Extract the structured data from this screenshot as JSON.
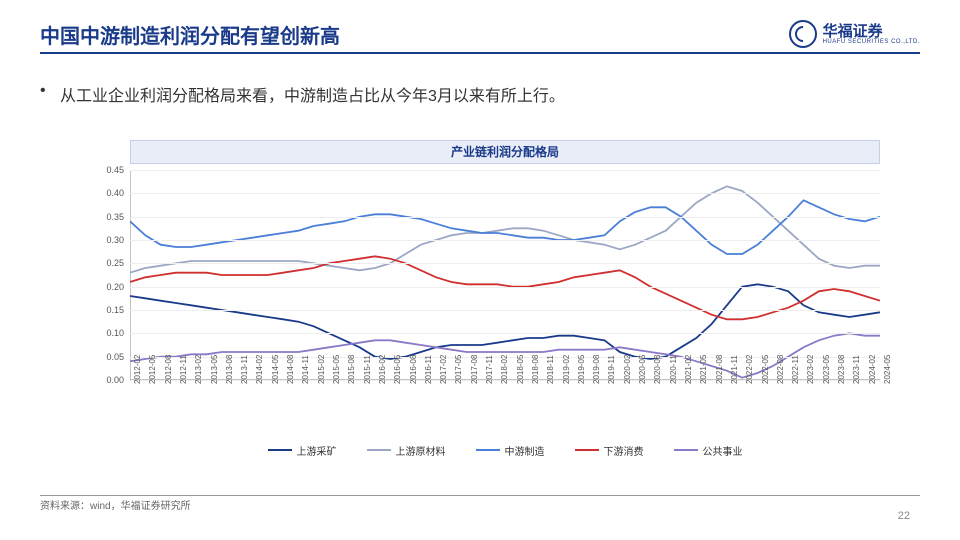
{
  "header": {
    "title": "中国中游制造利润分配有望创新高",
    "logo_cn": "华福证券",
    "logo_en": "HUAFU SECURITIES CO.,LTD."
  },
  "bullet_text": "从工业企业利润分配格局来看，中游制造占比从今年3月以来有所上行。",
  "chart": {
    "title": "产业链利润分配格局",
    "type": "line",
    "ylim": [
      0.0,
      0.45
    ],
    "ytick_step": 0.05,
    "yticks": [
      "0.00",
      "0.05",
      "0.10",
      "0.15",
      "0.20",
      "0.25",
      "0.30",
      "0.35",
      "0.40",
      "0.45"
    ],
    "x_labels": [
      "2012-02",
      "2012-05",
      "2012-08",
      "2012-11",
      "2013-02",
      "2013-05",
      "2013-08",
      "2013-11",
      "2014-02",
      "2014-05",
      "2014-08",
      "2014-11",
      "2015-02",
      "2015-05",
      "2015-08",
      "2015-11",
      "2016-02",
      "2016-05",
      "2016-08",
      "2016-11",
      "2017-02",
      "2017-05",
      "2017-08",
      "2017-11",
      "2018-02",
      "2018-05",
      "2018-08",
      "2018-11",
      "2019-02",
      "2019-05",
      "2019-08",
      "2019-11",
      "2020-02",
      "2020-05",
      "2020-08",
      "2020-11",
      "2021-02",
      "2021-05",
      "2021-08",
      "2021-11",
      "2022-02",
      "2022-05",
      "2022-08",
      "2022-11",
      "2023-02",
      "2023-05",
      "2023-08",
      "2023-11",
      "2024-02",
      "2024-05"
    ],
    "series": [
      {
        "name": "上游采矿",
        "color": "#1a3a8a",
        "width": 1.8,
        "values": [
          0.18,
          0.175,
          0.17,
          0.165,
          0.16,
          0.155,
          0.15,
          0.145,
          0.14,
          0.135,
          0.13,
          0.125,
          0.115,
          0.1,
          0.085,
          0.07,
          0.05,
          0.045,
          0.05,
          0.06,
          0.07,
          0.075,
          0.075,
          0.075,
          0.08,
          0.085,
          0.09,
          0.09,
          0.095,
          0.095,
          0.09,
          0.085,
          0.06,
          0.05,
          0.045,
          0.05,
          0.07,
          0.09,
          0.12,
          0.16,
          0.2,
          0.205,
          0.2,
          0.19,
          0.16,
          0.145,
          0.14,
          0.135,
          0.14,
          0.145
        ]
      },
      {
        "name": "上游原材料",
        "color": "#9ba7c4",
        "width": 1.8,
        "values": [
          0.23,
          0.24,
          0.245,
          0.25,
          0.255,
          0.255,
          0.255,
          0.255,
          0.255,
          0.255,
          0.255,
          0.255,
          0.25,
          0.245,
          0.24,
          0.235,
          0.24,
          0.25,
          0.27,
          0.29,
          0.3,
          0.31,
          0.315,
          0.315,
          0.32,
          0.325,
          0.325,
          0.32,
          0.31,
          0.3,
          0.295,
          0.29,
          0.28,
          0.29,
          0.305,
          0.32,
          0.35,
          0.38,
          0.4,
          0.415,
          0.405,
          0.38,
          0.35,
          0.32,
          0.29,
          0.26,
          0.245,
          0.24,
          0.245,
          0.245
        ]
      },
      {
        "name": "中游制造",
        "color": "#4a7fd8",
        "width": 1.8,
        "values": [
          0.34,
          0.31,
          0.29,
          0.285,
          0.285,
          0.29,
          0.295,
          0.3,
          0.305,
          0.31,
          0.315,
          0.32,
          0.33,
          0.335,
          0.34,
          0.35,
          0.355,
          0.355,
          0.35,
          0.345,
          0.335,
          0.325,
          0.32,
          0.315,
          0.315,
          0.31,
          0.305,
          0.305,
          0.3,
          0.3,
          0.305,
          0.31,
          0.34,
          0.36,
          0.37,
          0.37,
          0.35,
          0.32,
          0.29,
          0.27,
          0.27,
          0.29,
          0.32,
          0.35,
          0.385,
          0.37,
          0.355,
          0.345,
          0.34,
          0.35
        ]
      },
      {
        "name": "下游消费",
        "color": "#d12f2f",
        "width": 1.8,
        "values": [
          0.21,
          0.22,
          0.225,
          0.23,
          0.23,
          0.23,
          0.225,
          0.225,
          0.225,
          0.225,
          0.23,
          0.235,
          0.24,
          0.25,
          0.255,
          0.26,
          0.265,
          0.26,
          0.25,
          0.235,
          0.22,
          0.21,
          0.205,
          0.205,
          0.205,
          0.2,
          0.2,
          0.205,
          0.21,
          0.22,
          0.225,
          0.23,
          0.235,
          0.22,
          0.2,
          0.185,
          0.17,
          0.155,
          0.14,
          0.13,
          0.13,
          0.135,
          0.145,
          0.155,
          0.17,
          0.19,
          0.195,
          0.19,
          0.18,
          0.17
        ]
      },
      {
        "name": "公共事业",
        "color": "#8b78c7",
        "width": 1.8,
        "values": [
          0.04,
          0.045,
          0.05,
          0.05,
          0.055,
          0.055,
          0.06,
          0.06,
          0.06,
          0.06,
          0.06,
          0.06,
          0.065,
          0.07,
          0.075,
          0.08,
          0.085,
          0.085,
          0.08,
          0.075,
          0.07,
          0.065,
          0.06,
          0.06,
          0.06,
          0.06,
          0.06,
          0.06,
          0.065,
          0.065,
          0.065,
          0.065,
          0.07,
          0.065,
          0.06,
          0.055,
          0.05,
          0.04,
          0.03,
          0.02,
          0.005,
          0.015,
          0.03,
          0.05,
          0.07,
          0.085,
          0.095,
          0.1,
          0.095,
          0.095
        ]
      }
    ],
    "background_color": "#ffffff",
    "grid_color": "#eeeeee",
    "label_fontsize": 9,
    "title_fontsize": 12
  },
  "source_text": "资料来源：wind，华福证券研究所",
  "page_number": "22"
}
